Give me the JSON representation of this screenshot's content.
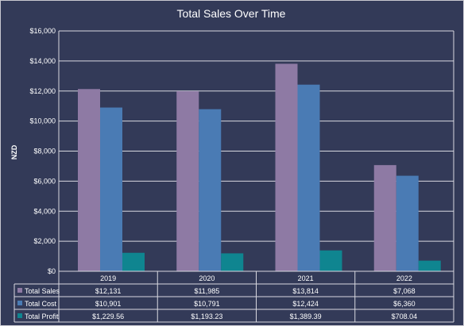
{
  "chart_data": {
    "type": "bar",
    "title": "Total Sales Over Time",
    "ylabel": "NZD",
    "xlabel": "",
    "categories": [
      "2019",
      "2020",
      "2021",
      "2022"
    ],
    "ylim": [
      0,
      16000
    ],
    "yticks": [
      0,
      2000,
      4000,
      6000,
      8000,
      10000,
      12000,
      14000,
      16000
    ],
    "ytick_labels": [
      "$0",
      "$2,000",
      "$4,000",
      "$6,000",
      "$8,000",
      "$10,000",
      "$12,000",
      "$14,000",
      "$16,000"
    ],
    "grid": true,
    "legend": "data table below chart",
    "series": [
      {
        "name": "Total Sales",
        "color": "#8e7aa4",
        "values": [
          12131,
          11985,
          13814,
          7068
        ],
        "table_labels": [
          "$12,131",
          "$11,985",
          "$13,814",
          "$7,068"
        ]
      },
      {
        "name": "Total Cost",
        "color": "#4a7bb4",
        "values": [
          10901,
          10791,
          12424,
          6360
        ],
        "table_labels": [
          "$10,901",
          "$10,791",
          "$12,424",
          "$6,360"
        ]
      },
      {
        "name": "Total Profit",
        "color": "#0f8590",
        "values": [
          1229.56,
          1193.23,
          1389.39,
          708.04
        ],
        "table_labels": [
          "$1,229.56",
          "$1,193.23",
          "$1,389.39",
          "$708.04"
        ]
      }
    ]
  }
}
